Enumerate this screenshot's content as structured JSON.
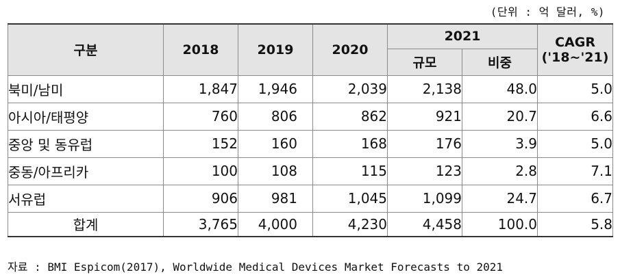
{
  "unit_note": "(단위 : 억 달러, %)",
  "header": {
    "category": "구분",
    "y2018": "2018",
    "y2019": "2019",
    "y2020": "2020",
    "y2021": "2021",
    "scale": "규모",
    "share": "비중",
    "cagr": "CAGR",
    "cagr_period": "('18~'21)"
  },
  "rows": [
    {
      "region": "북미/남미",
      "v2018": "1,847",
      "v2019": "1,946",
      "v2020": "2,039",
      "v2021": "2,138",
      "share": "48.0",
      "cagr": "5.0"
    },
    {
      "region": "아시아/태평양",
      "v2018": "760",
      "v2019": "806",
      "v2020": "862",
      "v2021": "921",
      "share": "20.7",
      "cagr": "6.6"
    },
    {
      "region": "중앙 및 동유럽",
      "v2018": "152",
      "v2019": "160",
      "v2020": "168",
      "v2021": "176",
      "share": "3.9",
      "cagr": "5.0"
    },
    {
      "region": "중동/아프리카",
      "v2018": "100",
      "v2019": "108",
      "v2020": "115",
      "v2021": "123",
      "share": "2.8",
      "cagr": "7.1"
    },
    {
      "region": "서유럽",
      "v2018": "906",
      "v2019": "981",
      "v2020": "1,045",
      "v2021": "1,099",
      "share": "24.7",
      "cagr": "6.7"
    }
  ],
  "total": {
    "label": "합계",
    "v2018": "3,765",
    "v2019": "4,000",
    "v2020": "4,230",
    "v2021": "4,458",
    "share": "100.0",
    "cagr": "5.8"
  },
  "source": "자료 : BMI Espicom(2017), Worldwide Medical Devices Market Forecasts to 2021"
}
